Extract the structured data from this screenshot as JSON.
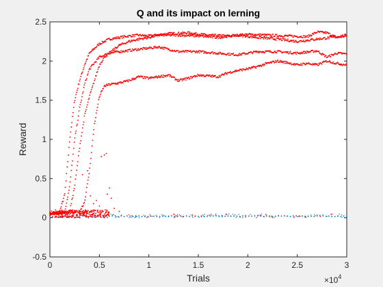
{
  "chart_data": {
    "type": "scatter",
    "title": "Q and its impact on lerning",
    "xlabel": "Trials",
    "ylabel": "Reward",
    "xlim": [
      0,
      30000
    ],
    "ylim": [
      -0.5,
      2.5
    ],
    "x_exponent_label": "×10",
    "x_exponent_power": "4",
    "x_ticks": [
      0,
      5000,
      10000,
      15000,
      20000,
      25000,
      30000
    ],
    "x_tick_labels": [
      "0",
      "0.5",
      "1",
      "1.5",
      "2",
      "2.5",
      "3"
    ],
    "y_ticks": [
      -0.5,
      0,
      0.5,
      1,
      1.5,
      2,
      2.5
    ],
    "y_tick_labels": [
      "-0.5",
      "0",
      "0.5",
      "1",
      "1.5",
      "2",
      "2.5"
    ],
    "grid": false,
    "colors": {
      "primary": "#ff0000",
      "secondary": "#0072bd",
      "axes": "#262626",
      "background": "#ffffff"
    },
    "series": [
      {
        "color": "#ff0000",
        "points": [
          [
            0,
            0.05
          ],
          [
            1000,
            0.08
          ],
          [
            1500,
            0.3
          ],
          [
            2000,
            1.0
          ],
          [
            2500,
            1.5
          ],
          [
            3000,
            1.75
          ],
          [
            3500,
            1.95
          ],
          [
            4000,
            2.1
          ],
          [
            5000,
            2.22
          ],
          [
            6000,
            2.28
          ],
          [
            7000,
            2.3
          ],
          [
            8000,
            2.32
          ],
          [
            9000,
            2.33
          ],
          [
            10000,
            2.32
          ],
          [
            12000,
            2.35
          ],
          [
            14000,
            2.36
          ],
          [
            16000,
            2.33
          ],
          [
            18000,
            2.32
          ],
          [
            20000,
            2.34
          ],
          [
            22000,
            2.33
          ],
          [
            24000,
            2.32
          ],
          [
            26000,
            2.31
          ],
          [
            27000,
            2.37
          ],
          [
            28000,
            2.36
          ],
          [
            29000,
            2.3
          ],
          [
            30000,
            2.32
          ]
        ]
      },
      {
        "color": "#ff0000",
        "points": [
          [
            0,
            0.05
          ],
          [
            1500,
            0.08
          ],
          [
            2000,
            0.4
          ],
          [
            2500,
            1.0
          ],
          [
            3000,
            1.4
          ],
          [
            3500,
            1.7
          ],
          [
            4000,
            1.9
          ],
          [
            5000,
            2.05
          ],
          [
            6000,
            2.1
          ],
          [
            7000,
            2.12
          ],
          [
            9000,
            2.15
          ],
          [
            11000,
            2.18
          ],
          [
            13000,
            2.12
          ],
          [
            15000,
            2.12
          ],
          [
            17000,
            2.1
          ],
          [
            19000,
            2.08
          ],
          [
            21000,
            2.12
          ],
          [
            23000,
            2.12
          ],
          [
            25000,
            2.1
          ],
          [
            27000,
            2.13
          ],
          [
            28000,
            2.05
          ],
          [
            29000,
            2.1
          ],
          [
            30000,
            2.09
          ]
        ]
      },
      {
        "color": "#ff0000",
        "points": [
          [
            0,
            0.05
          ],
          [
            2000,
            0.08
          ],
          [
            2500,
            0.4
          ],
          [
            3000,
            0.9
          ],
          [
            3500,
            1.3
          ],
          [
            4000,
            1.55
          ],
          [
            4500,
            1.75
          ],
          [
            5000,
            1.95
          ],
          [
            5500,
            2.05
          ],
          [
            6000,
            2.1
          ],
          [
            7000,
            2.2
          ],
          [
            8000,
            2.25
          ],
          [
            9000,
            2.28
          ],
          [
            10000,
            2.3
          ],
          [
            11000,
            2.33
          ],
          [
            13000,
            2.33
          ],
          [
            15000,
            2.32
          ],
          [
            17000,
            2.3
          ],
          [
            19000,
            2.33
          ],
          [
            21000,
            2.3
          ],
          [
            23000,
            2.28
          ],
          [
            25000,
            2.25
          ],
          [
            27000,
            2.28
          ],
          [
            28500,
            2.3
          ],
          [
            30000,
            2.33
          ]
        ]
      },
      {
        "color": "#ff0000",
        "points": [
          [
            0,
            0.05
          ],
          [
            3000,
            0.08
          ],
          [
            3500,
            0.2
          ],
          [
            4000,
            0.6
          ],
          [
            4500,
            1.2
          ],
          [
            5000,
            1.55
          ],
          [
            5500,
            1.68
          ],
          [
            6000,
            1.7
          ],
          [
            7000,
            1.72
          ],
          [
            8000,
            1.75
          ],
          [
            9000,
            1.8
          ],
          [
            10000,
            1.78
          ],
          [
            11000,
            1.8
          ],
          [
            12000,
            1.82
          ],
          [
            13000,
            1.75
          ],
          [
            14000,
            1.78
          ],
          [
            15000,
            1.82
          ],
          [
            17000,
            1.8
          ],
          [
            18000,
            1.85
          ],
          [
            19000,
            1.88
          ],
          [
            20000,
            1.9
          ],
          [
            21000,
            1.93
          ],
          [
            22000,
            1.97
          ],
          [
            23000,
            2.0
          ],
          [
            24000,
            1.98
          ],
          [
            25000,
            1.95
          ],
          [
            26000,
            1.97
          ],
          [
            27000,
            1.95
          ],
          [
            28000,
            2.0
          ],
          [
            29000,
            1.97
          ],
          [
            30000,
            1.95
          ]
        ]
      },
      {
        "color": "#0072bd",
        "points": [
          [
            0,
            0.02
          ],
          [
            5000,
            0.02
          ],
          [
            10000,
            0.02
          ],
          [
            15000,
            0.02
          ],
          [
            20000,
            0.02
          ],
          [
            25000,
            0.02
          ],
          [
            30000,
            0.02
          ]
        ]
      }
    ],
    "scattered_points": [
      [
        5200,
        0.78
      ],
      [
        5500,
        0.8
      ],
      [
        5700,
        0.82
      ],
      [
        6000,
        0.38
      ],
      [
        5800,
        0.3
      ],
      [
        6200,
        0.25
      ],
      [
        3300,
        0.55
      ],
      [
        3800,
        0.6
      ],
      [
        4100,
        0.28
      ],
      [
        4400,
        0.18
      ],
      [
        4700,
        0.22
      ],
      [
        5000,
        0.15
      ],
      [
        6500,
        0.12
      ],
      [
        7000,
        0.08
      ]
    ]
  }
}
